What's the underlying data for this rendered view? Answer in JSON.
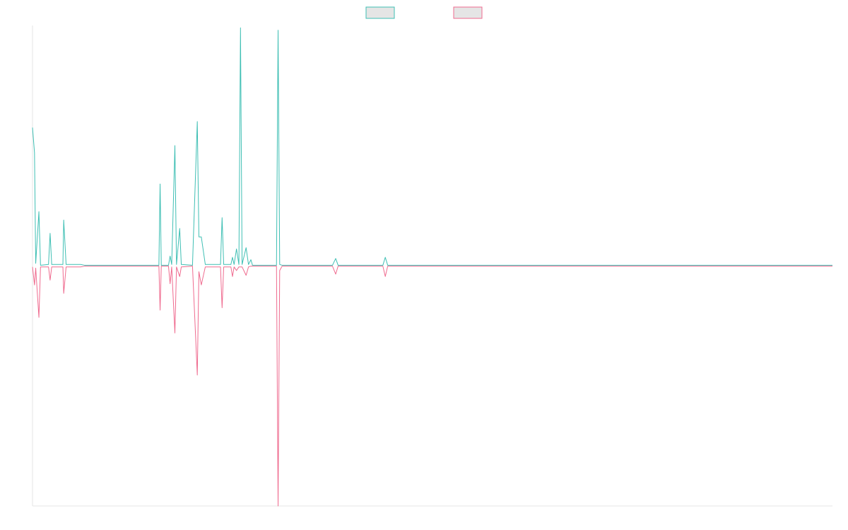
{
  "chart_data": {
    "type": "line",
    "title": "",
    "xlabel": "",
    "ylabel": "",
    "grid": false,
    "legend": "top-center",
    "xlim": [
      0,
      1000
    ],
    "ylim": [
      -1,
      1
    ],
    "series": [
      {
        "name": "",
        "color": "#3fbfb4",
        "fill": "#e5e5e5",
        "points": [
          [
            0,
            0.575
          ],
          [
            2.5,
            0.47
          ],
          [
            4,
            0.01
          ],
          [
            8,
            0.225
          ],
          [
            10,
            0.002
          ],
          [
            20,
            0.005
          ],
          [
            22,
            0.135
          ],
          [
            24,
            0.005
          ],
          [
            38,
            0.005
          ],
          [
            39,
            0.19
          ],
          [
            42,
            0.005
          ],
          [
            60,
            0.005
          ],
          [
            65,
            0.002
          ],
          [
            158,
            0.002
          ],
          [
            159.5,
            0.34
          ],
          [
            161,
            0.002
          ],
          [
            170,
            0.002
          ],
          [
            172,
            0.04
          ],
          [
            174,
            0.005
          ],
          [
            178,
            0.5
          ],
          [
            180,
            0.005
          ],
          [
            184,
            0.155
          ],
          [
            186,
            0.005
          ],
          [
            200,
            0.002
          ],
          [
            206,
            0.6
          ],
          [
            208,
            0.12
          ],
          [
            211,
            0.12
          ],
          [
            216,
            0.005
          ],
          [
            235,
            0.005
          ],
          [
            237,
            0.2
          ],
          [
            239,
            0.005
          ],
          [
            248,
            0.005
          ],
          [
            250,
            0.035
          ],
          [
            252,
            0.005
          ],
          [
            255,
            0.07
          ],
          [
            258,
            0.005
          ],
          [
            260,
            0.99
          ],
          [
            262,
            0.005
          ],
          [
            267,
            0.075
          ],
          [
            270,
            0.005
          ],
          [
            273,
            0.025
          ],
          [
            275,
            0.002
          ],
          [
            305,
            0.002
          ],
          [
            307,
            0.98
          ],
          [
            309,
            0.005
          ],
          [
            312,
            0.002
          ],
          [
            375,
            0.002
          ],
          [
            379,
            0.03
          ],
          [
            382,
            0.002
          ],
          [
            438,
            0.002
          ],
          [
            441,
            0.035
          ],
          [
            444,
            0.002
          ],
          [
            1000,
            0.002
          ]
        ]
      },
      {
        "name": "",
        "color": "#ef6b8f",
        "fill": "#e5e5e5",
        "points": [
          [
            0,
            -0.005
          ],
          [
            2.5,
            -0.08
          ],
          [
            4,
            -0.01
          ],
          [
            8,
            -0.215
          ],
          [
            10,
            -0.005
          ],
          [
            20,
            -0.005
          ],
          [
            22,
            -0.06
          ],
          [
            24,
            -0.005
          ],
          [
            38,
            -0.005
          ],
          [
            39,
            -0.115
          ],
          [
            42,
            -0.005
          ],
          [
            60,
            -0.005
          ],
          [
            65,
            -0.002
          ],
          [
            158,
            -0.002
          ],
          [
            159.5,
            -0.185
          ],
          [
            161,
            -0.002
          ],
          [
            170,
            -0.002
          ],
          [
            172,
            -0.075
          ],
          [
            174,
            -0.005
          ],
          [
            178,
            -0.28
          ],
          [
            180,
            -0.005
          ],
          [
            184,
            -0.045
          ],
          [
            186,
            -0.005
          ],
          [
            200,
            -0.002
          ],
          [
            206,
            -0.455
          ],
          [
            208,
            -0.025
          ],
          [
            211,
            -0.08
          ],
          [
            216,
            -0.005
          ],
          [
            235,
            -0.005
          ],
          [
            237,
            -0.175
          ],
          [
            239,
            -0.005
          ],
          [
            248,
            -0.005
          ],
          [
            250,
            -0.045
          ],
          [
            252,
            -0.005
          ],
          [
            255,
            -0.02
          ],
          [
            258,
            -0.005
          ],
          [
            260,
            -0.005
          ],
          [
            262,
            -0.005
          ],
          [
            267,
            -0.04
          ],
          [
            270,
            -0.005
          ],
          [
            273,
            -0.002
          ],
          [
            305,
            -0.002
          ],
          [
            307,
            -1.0
          ],
          [
            309,
            -0.02
          ],
          [
            312,
            -0.002
          ],
          [
            375,
            -0.002
          ],
          [
            379,
            -0.035
          ],
          [
            382,
            -0.002
          ],
          [
            438,
            -0.002
          ],
          [
            441,
            -0.045
          ],
          [
            444,
            -0.002
          ],
          [
            1000,
            -0.002
          ]
        ]
      }
    ]
  }
}
